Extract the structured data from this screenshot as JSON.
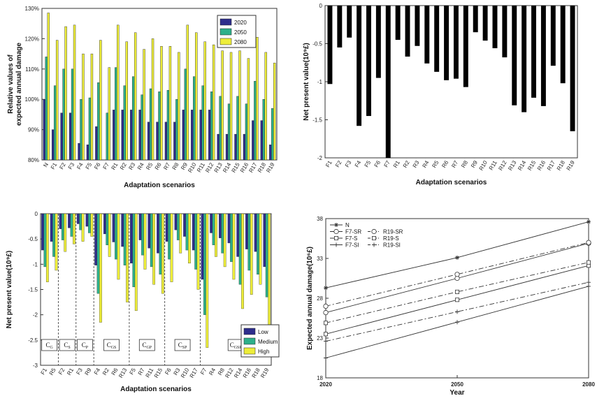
{
  "chart_data": [
    {
      "type": "bar",
      "xlabel": "Adaptation scenarios",
      "ylabel_lines": [
        "Relative values of",
        "expected annual damage"
      ],
      "ylim": [
        80,
        130
      ],
      "yticks": [
        "80%",
        "90%",
        "100%",
        "110%",
        "120%",
        "130%"
      ],
      "legend_position": "top-right",
      "categories": [
        "N",
        "F1",
        "F2",
        "F3",
        "F4",
        "F5",
        "F6",
        "F7",
        "R1",
        "R2",
        "R3",
        "R4",
        "R5",
        "R6",
        "R7",
        "R8",
        "R9",
        "R10",
        "R11",
        "R12",
        "R13",
        "R14",
        "R15",
        "R16",
        "R17",
        "R18",
        "R19"
      ],
      "series": [
        {
          "name": "2020",
          "color": "#2e2e8c",
          "values": [
            100,
            90,
            95.5,
            95.5,
            85.5,
            85,
            91,
            80,
            96.5,
            96.5,
            96.5,
            96.5,
            92.5,
            92.5,
            92.5,
            92.5,
            96.5,
            96.5,
            96.5,
            96.5,
            88.5,
            88.5,
            88.5,
            88.5,
            93,
            93,
            85
          ]
        },
        {
          "name": "2050",
          "color": "#2eb08a",
          "values": [
            114,
            104.5,
            110,
            110,
            100,
            100.5,
            105.5,
            95.5,
            110.5,
            104.5,
            107.5,
            101.5,
            103.5,
            102.5,
            103,
            100,
            110,
            107.5,
            104.5,
            102.5,
            101,
            98.5,
            101,
            98.5,
            106,
            100,
            97
          ]
        },
        {
          "name": "2080",
          "color": "#eded3a",
          "values": [
            128.5,
            119.5,
            124,
            124.5,
            115,
            115,
            119.5,
            110.5,
            124.5,
            119,
            122,
            116.5,
            120,
            117.5,
            117.5,
            115.5,
            124.5,
            122,
            119,
            118,
            116,
            115.5,
            116,
            113.5,
            120.5,
            115.5,
            112
          ]
        }
      ]
    },
    {
      "type": "bar",
      "xlabel": "Adaptation scenarios",
      "ylabel": "Net present value(10⁹£)",
      "ylim": [
        -2,
        0
      ],
      "yticks": [
        "-2",
        "-1.5",
        "-1",
        "-0.5",
        "0"
      ],
      "categories": [
        "F1",
        "F2",
        "F3",
        "F4",
        "F5",
        "F6",
        "F7",
        "R1",
        "R2",
        "R3",
        "R4",
        "R5",
        "R6",
        "R7",
        "R8",
        "R9",
        "R10",
        "R11",
        "R12",
        "R13",
        "R14",
        "R15",
        "R16",
        "R17",
        "R18",
        "R19"
      ],
      "series": [
        {
          "color": "#000000",
          "values": [
            -1.03,
            -0.55,
            -0.42,
            -1.58,
            -1.45,
            -0.95,
            -2.0,
            -0.45,
            -0.67,
            -0.53,
            -0.76,
            -0.87,
            -0.98,
            -0.96,
            -1.07,
            -0.35,
            -0.46,
            -0.56,
            -0.68,
            -1.31,
            -1.4,
            -1.21,
            -1.32,
            -0.79,
            -1.02,
            -1.65
          ]
        }
      ]
    },
    {
      "type": "bar",
      "xlabel": "Adaptation scenarios",
      "ylabel": "Net present value(10⁹£)",
      "ylim": [
        -3,
        0
      ],
      "yticks": [
        "-3",
        "-2.5",
        "-2",
        "-1.5",
        "-1",
        "-0.5",
        "0"
      ],
      "legend_position": "bottom-right",
      "categories": [
        "F1",
        "R5",
        "F2",
        "R1",
        "F3",
        "R9",
        "F4",
        "R2",
        "R6",
        "R13",
        "F5",
        "R7",
        "R11",
        "R15",
        "F6",
        "R3",
        "R10",
        "R17",
        "F7",
        "R4",
        "R8",
        "R12",
        "R14",
        "R16",
        "R18",
        "R19"
      ],
      "groups": [
        {
          "label": "C",
          "sub": "G",
          "count": 2
        },
        {
          "label": "C",
          "sub": "S",
          "count": 2
        },
        {
          "label": "C",
          "sub": "P",
          "count": 2
        },
        {
          "label": "C",
          "sub": "GS",
          "count": 4
        },
        {
          "label": "C",
          "sub": "GP",
          "count": 4
        },
        {
          "label": "C",
          "sub": "SP",
          "count": 4
        },
        {
          "label": "C",
          "sub": "GSP",
          "count": 8
        }
      ],
      "series": [
        {
          "name": "Low",
          "color": "#2e2e8c",
          "values": [
            -0.72,
            -0.55,
            -0.3,
            -0.28,
            -0.2,
            -0.25,
            -1.02,
            -0.4,
            -0.56,
            -0.65,
            -0.98,
            -0.52,
            -0.68,
            -0.78,
            -0.55,
            -0.32,
            -0.45,
            -0.72,
            -1.3,
            -0.38,
            -0.48,
            -0.58,
            -0.85,
            -0.7,
            -0.75,
            -1.05
          ]
        },
        {
          "name": "Medium",
          "color": "#2eb08a",
          "values": [
            -1.05,
            -0.85,
            -0.52,
            -0.45,
            -0.32,
            -0.38,
            -1.58,
            -0.62,
            -0.9,
            -1.02,
            -1.45,
            -0.82,
            -1.05,
            -1.2,
            -0.9,
            -0.52,
            -0.72,
            -1.1,
            -2.0,
            -0.62,
            -0.78,
            -0.95,
            -1.4,
            -1.12,
            -1.2,
            -1.65
          ]
        },
        {
          "name": "High",
          "color": "#eded3a",
          "values": [
            -1.35,
            -1.12,
            -0.75,
            -0.6,
            -0.55,
            -0.45,
            -2.15,
            -0.85,
            -1.3,
            -1.75,
            -1.92,
            -1.1,
            -1.4,
            -1.58,
            -1.35,
            -0.78,
            -0.98,
            -1.5,
            -2.65,
            -0.85,
            -1.05,
            -1.3,
            -1.88,
            -1.6,
            -1.4,
            -2.27
          ]
        }
      ]
    },
    {
      "type": "line",
      "xlabel": "Year",
      "ylabel": "Expected annual damage(10⁶£)",
      "x": [
        2020,
        2050,
        2080
      ],
      "xticks": [
        "2020",
        "2050",
        "2080"
      ],
      "ylim": [
        18,
        38
      ],
      "yticks": [
        "18",
        "23",
        "28",
        "33",
        "38"
      ],
      "legend_position": "top-left",
      "series": [
        {
          "name": "N",
          "marker": "star",
          "dash": "",
          "values": [
            29.3,
            33.1,
            37.6
          ]
        },
        {
          "name": "F7-SR",
          "marker": "circle",
          "dash": "",
          "values": [
            26.2,
            30.5,
            34.9
          ]
        },
        {
          "name": "F7-S",
          "marker": "square",
          "dash": "",
          "values": [
            23.5,
            27.8,
            32.1
          ]
        },
        {
          "name": "F7-SI",
          "marker": "plus",
          "dash": "",
          "values": [
            20.5,
            25.0,
            29.5
          ]
        },
        {
          "name": "R19-SR",
          "marker": "circle",
          "dash": "7 3 2 3",
          "values": [
            27.0,
            31.0,
            35.0
          ]
        },
        {
          "name": "R19-S",
          "marker": "square",
          "dash": "7 3 2 3",
          "values": [
            24.9,
            28.8,
            32.5
          ]
        },
        {
          "name": "R19-SI",
          "marker": "plus",
          "dash": "7 3 2 3",
          "values": [
            22.6,
            26.3,
            30.0
          ]
        }
      ]
    }
  ]
}
